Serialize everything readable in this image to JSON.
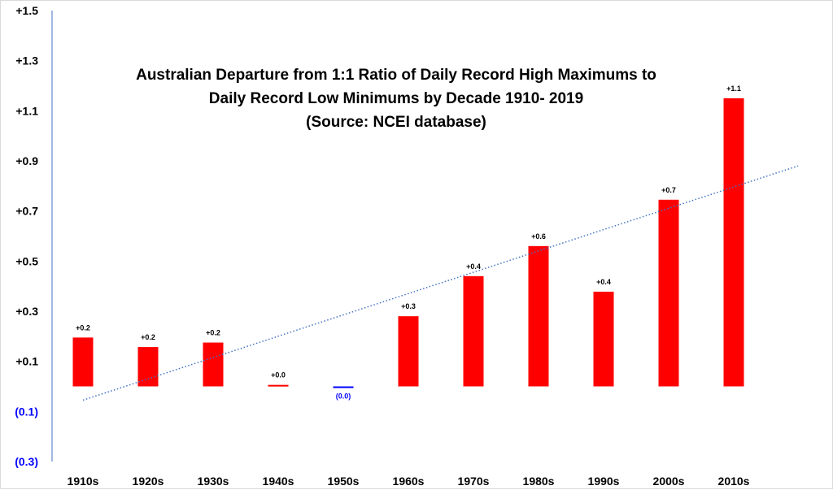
{
  "chart_data": {
    "type": "bar",
    "title_lines": [
      "Australian Departure from 1:1 Ratio of Daily Record High Maximums to",
      "Daily Record Low Minimums by Decade 1910- 2019",
      "(Source: NCEI database)"
    ],
    "categories": [
      "1910s",
      "1920s",
      "1930s",
      "1940s",
      "1950s",
      "1960s",
      "1970s",
      "1980s",
      "1990s",
      "2000s",
      "2010s"
    ],
    "values": [
      0.195,
      0.157,
      0.175,
      0.006,
      -0.005,
      0.28,
      0.44,
      0.56,
      0.378,
      0.745,
      1.15
    ],
    "data_labels": [
      "+0.2",
      "+0.2",
      "+0.2",
      "+0.0",
      "(0.0)",
      "+0.3",
      "+0.4",
      "+0.6",
      "+0.4",
      "+0.7",
      "+1.1"
    ],
    "y_ticks": [
      {
        "value": 1.5,
        "label": "+1.5"
      },
      {
        "value": 1.3,
        "label": "+1.3"
      },
      {
        "value": 1.1,
        "label": "+1.1"
      },
      {
        "value": 0.9,
        "label": "+0.9"
      },
      {
        "value": 0.7,
        "label": "+0.7"
      },
      {
        "value": 0.5,
        "label": "+0.5"
      },
      {
        "value": 0.3,
        "label": "+0.3"
      },
      {
        "value": 0.1,
        "label": "+0.1"
      },
      {
        "value": -0.1,
        "label": "(0.1)"
      },
      {
        "value": -0.3,
        "label": "(0.3)"
      }
    ],
    "ylim": [
      -0.3,
      1.5
    ],
    "trendline": {
      "style": "dotted",
      "start": -0.055,
      "end": 0.88
    },
    "grid": false,
    "colors": {
      "positive_bar": "#ff0000",
      "negative_bar": "#0000ff",
      "positive_text": "#000000",
      "negative_text": "#0000ff",
      "trendline": "#4472c4",
      "axis": "#4472c4"
    }
  }
}
